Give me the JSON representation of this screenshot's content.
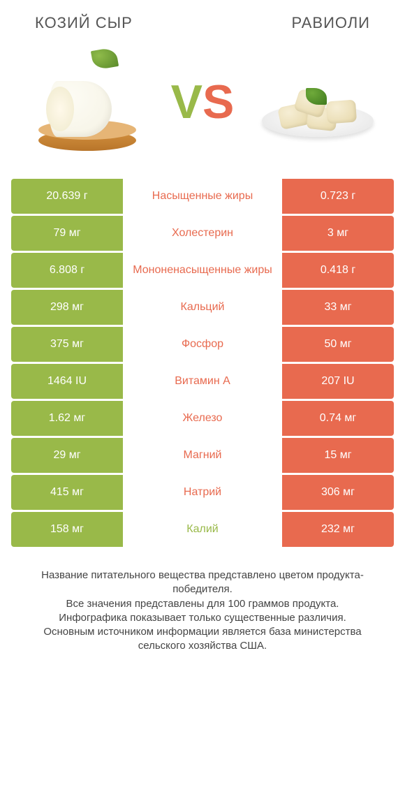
{
  "colors": {
    "green": "#99b949",
    "orange": "#e86a4f",
    "text": "#555555",
    "footer_text": "#444444",
    "background": "#ffffff"
  },
  "typography": {
    "title_fontsize": 22,
    "vs_fontsize": 68,
    "cell_fontsize": 16,
    "footer_fontsize": 15
  },
  "header": {
    "left_title": "КОЗИЙ СЫР",
    "right_title": "РАВИОЛИ"
  },
  "vs": {
    "v": "V",
    "s": "S"
  },
  "table": {
    "type": "comparison-table",
    "left_color": "#99b949",
    "right_color": "#e86a4f",
    "rows": [
      {
        "left": "20.639 г",
        "label": "Насыщенные жиры",
        "right": "0.723 г",
        "winner": "left"
      },
      {
        "left": "79 мг",
        "label": "Холестерин",
        "right": "3 мг",
        "winner": "left"
      },
      {
        "left": "6.808 г",
        "label": "Мононенасыщенные жиры",
        "right": "0.418 г",
        "winner": "left"
      },
      {
        "left": "298 мг",
        "label": "Кальций",
        "right": "33 мг",
        "winner": "left"
      },
      {
        "left": "375 мг",
        "label": "Фосфор",
        "right": "50 мг",
        "winner": "left"
      },
      {
        "left": "1464 IU",
        "label": "Витамин A",
        "right": "207 IU",
        "winner": "left"
      },
      {
        "left": "1.62 мг",
        "label": "Железо",
        "right": "0.74 мг",
        "winner": "left"
      },
      {
        "left": "29 мг",
        "label": "Магний",
        "right": "15 мг",
        "winner": "left"
      },
      {
        "left": "415 мг",
        "label": "Натрий",
        "right": "306 мг",
        "winner": "left"
      },
      {
        "left": "158 мг",
        "label": "Калий",
        "right": "232 мг",
        "winner": "right"
      }
    ]
  },
  "footer": {
    "line1": "Название питательного вещества представлено цветом продукта-победителя.",
    "line2": "Все значения представлены для 100 граммов продукта.",
    "line3": "Инфографика показывает только существенные различия.",
    "line4": "Основным источником информации является база министерства сельского хозяйства США."
  }
}
